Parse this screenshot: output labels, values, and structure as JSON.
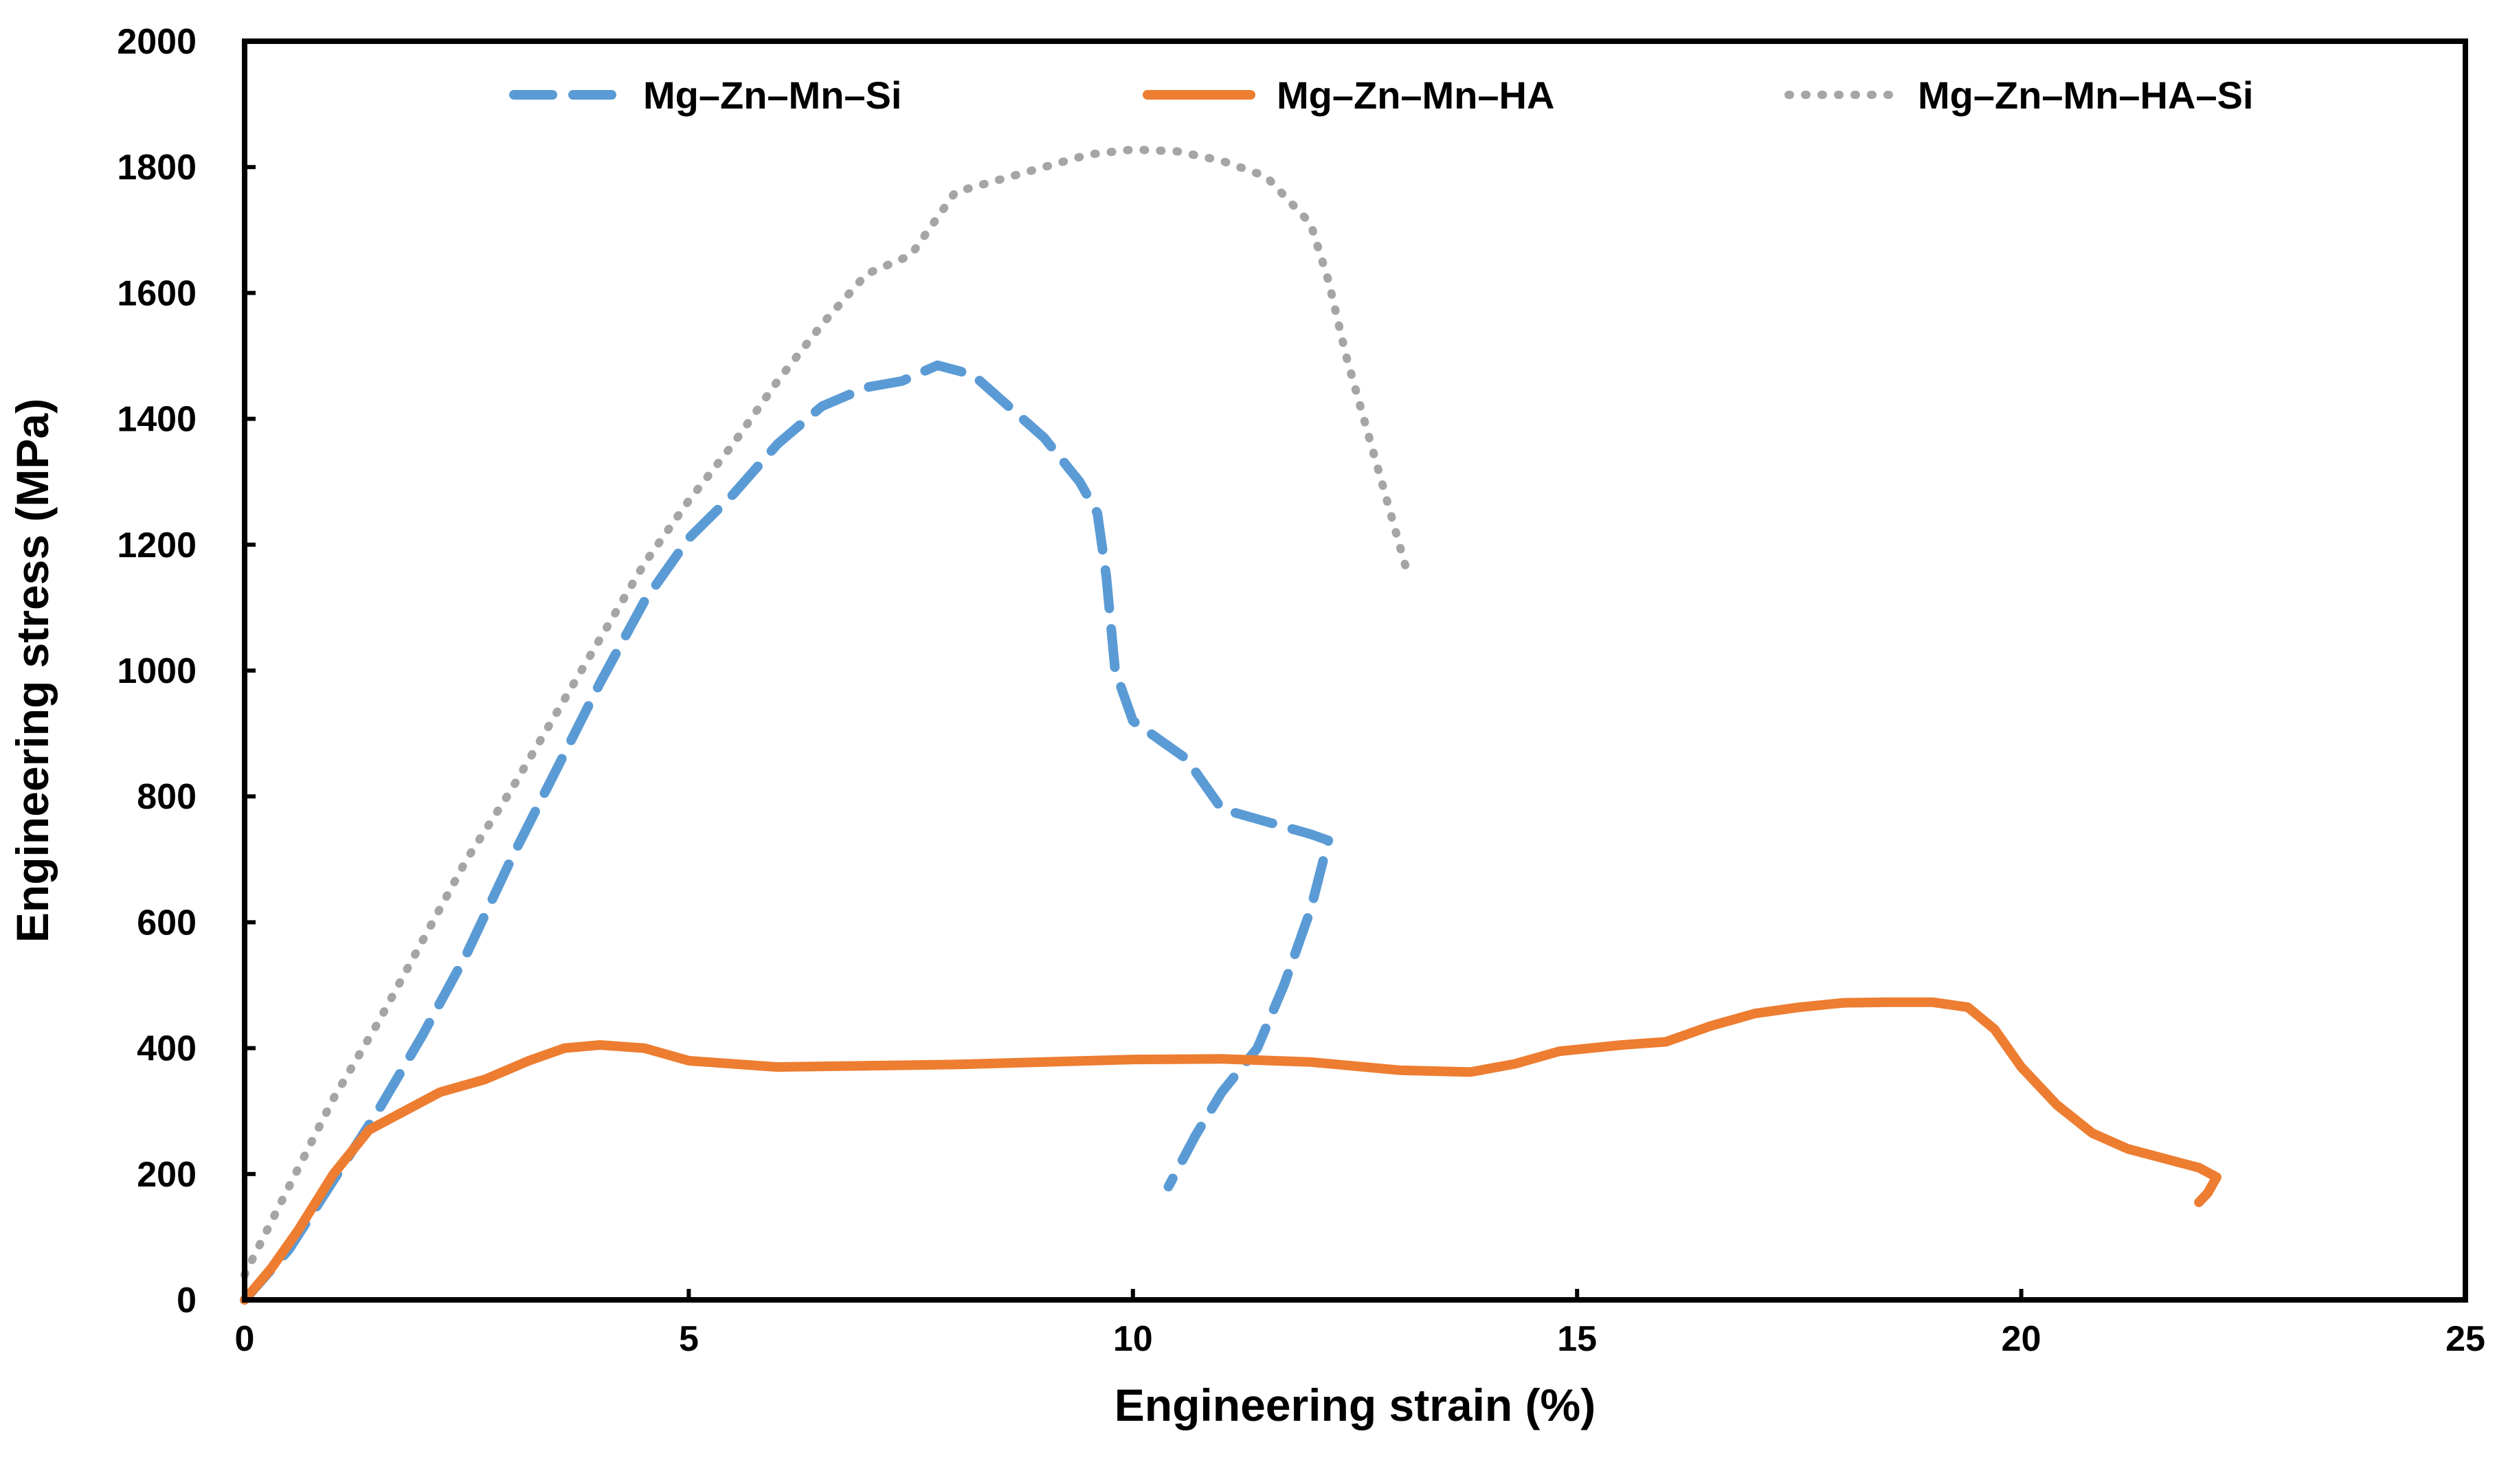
{
  "chart_data": {
    "type": "line",
    "title": "",
    "xlabel": "Engineering strain (%)",
    "ylabel": "Engineering stress (MPa)",
    "xlim": [
      0,
      25
    ],
    "ylim": [
      0,
      2000
    ],
    "xticks": [
      0,
      5,
      10,
      15,
      20,
      25
    ],
    "yticks": [
      0,
      200,
      400,
      600,
      800,
      1000,
      1200,
      1400,
      1600,
      1800,
      2000
    ],
    "xtick_labels": [
      "0",
      "5",
      "10",
      "15",
      "20",
      "25"
    ],
    "ytick_labels": [
      "0",
      "200",
      "400",
      "600",
      "800",
      "1000",
      "1200",
      "1400",
      "1600",
      "1800",
      "2000"
    ],
    "grid": false,
    "legend_position": "top",
    "series": [
      {
        "name": "Mg–Zn–Mn–Si",
        "color": "#5B9BD5",
        "style": "dashed",
        "x": [
          0,
          0.5,
          1.0,
          1.5,
          2.0,
          2.5,
          3.0,
          3.5,
          4.0,
          4.5,
          5.0,
          5.5,
          6.0,
          6.5,
          7.0,
          7.4,
          7.8,
          8.2,
          8.6,
          9.0,
          9.4,
          9.6,
          9.7,
          9.8,
          10.0,
          10.3,
          10.6,
          11.0,
          11.5,
          12.0,
          12.2,
          12.0,
          11.7,
          11.4,
          11.0,
          10.7,
          10.4
        ],
        "y": [
          0,
          80,
          190,
          300,
          420,
          550,
          700,
          840,
          980,
          1110,
          1210,
          1280,
          1360,
          1420,
          1450,
          1460,
          1485,
          1470,
          1420,
          1370,
          1300,
          1250,
          1150,
          1000,
          920,
          890,
          860,
          780,
          760,
          740,
          730,
          620,
          500,
          400,
          330,
          260,
          180
        ]
      },
      {
        "name": "Mg–Zn–Mn–HA",
        "color": "#ED7D31",
        "style": "solid",
        "x": [
          0,
          0.3,
          0.6,
          1.0,
          1.4,
          1.8,
          2.2,
          2.7,
          3.2,
          3.6,
          4.0,
          4.5,
          5.0,
          6.0,
          7.0,
          8.0,
          9.0,
          10.0,
          11.0,
          12.0,
          13.0,
          13.8,
          14.3,
          14.8,
          15.5,
          16.0,
          16.5,
          17.0,
          17.5,
          18.0,
          18.5,
          19.0,
          19.4,
          19.7,
          20.0,
          20.4,
          20.8,
          21.2,
          21.6,
          22.0,
          22.2,
          22.1,
          22.0
        ],
        "y": [
          0,
          50,
          110,
          200,
          270,
          300,
          330,
          350,
          380,
          400,
          405,
          400,
          380,
          370,
          372,
          374,
          378,
          382,
          383,
          378,
          365,
          362,
          375,
          395,
          405,
          410,
          435,
          455,
          465,
          472,
          473,
          473,
          465,
          430,
          370,
          310,
          265,
          240,
          225,
          210,
          195,
          170,
          155
        ]
      },
      {
        "name": "Mg–Zn–Mn–HA–Si",
        "color": "#A5A5A5",
        "style": "dotted",
        "x": [
          0,
          0.5,
          1.0,
          1.5,
          2.0,
          2.5,
          3.0,
          3.5,
          4.0,
          4.5,
          5.0,
          5.5,
          6.0,
          6.5,
          7.0,
          7.5,
          8.0,
          8.5,
          9.0,
          9.5,
          10.0,
          10.5,
          11.0,
          11.5,
          12.0,
          12.2,
          12.4,
          12.6,
          12.8,
          13.0,
          13.1
        ],
        "y": [
          40,
          180,
          320,
          440,
          570,
          700,
          810,
          930,
          1050,
          1170,
          1270,
          1360,
          1460,
          1550,
          1630,
          1660,
          1760,
          1780,
          1800,
          1820,
          1828,
          1825,
          1810,
          1785,
          1710,
          1620,
          1500,
          1400,
          1300,
          1200,
          1150
        ]
      }
    ]
  }
}
